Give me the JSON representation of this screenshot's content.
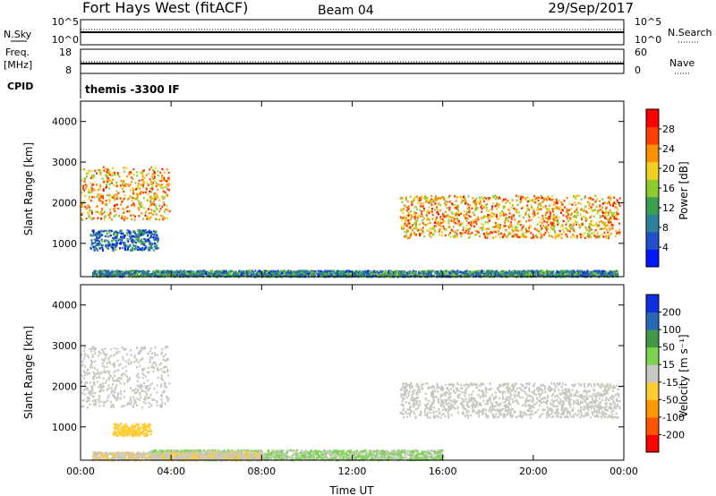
{
  "header": {
    "station": "Fort Hays West (fitACF)",
    "beam": "Beam 04",
    "date": "29/Sep/2017"
  },
  "aux_labels": {
    "nsky": "N.Sky",
    "nsearch": "N.Search",
    "freq_top": "Freq.",
    "freq_unit": "[MHz]",
    "nave": "Nave",
    "cpid": "CPID",
    "cpid_value": "themis -3300 IF",
    "noise_ticks_left": [
      "10^5",
      "10^0"
    ],
    "noise_ticks_right": [
      "10^5",
      "10^0"
    ],
    "freq_ticks": [
      "18",
      "8"
    ],
    "nave_ticks": [
      "60",
      "0"
    ]
  },
  "colors": {
    "power_scale": [
      "#0018ff",
      "#2050c8",
      "#2e7f99",
      "#3aa050",
      "#8ccc30",
      "#f0d020",
      "#ff9000",
      "#ff4000",
      "#ff0000"
    ],
    "velocity_scale": [
      "#ff0000",
      "#ff5500",
      "#ff9900",
      "#ffcc33",
      "#c8c8c0",
      "#7ad450",
      "#409848",
      "#2868b8",
      "#1030e0"
    ],
    "ground_scatter": "#c8c8c0"
  },
  "chart_data": [
    {
      "type": "heatmap",
      "panel": "power",
      "xlabel": "Time UT",
      "ylabel": "Slant Range [km]",
      "colorbar_label": "Power [dB]",
      "colorbar_ticks": [
        "28",
        "24",
        "20",
        "16",
        "12",
        "8",
        "4"
      ],
      "x_ticks": [
        "00:00",
        "04:00",
        "08:00",
        "12:00",
        "16:00",
        "20:00",
        "00:00"
      ],
      "y_ticks": [
        "4000",
        "3000",
        "2000",
        "1000"
      ],
      "xlim": [
        0,
        24
      ],
      "ylim": [
        180,
        4500
      ],
      "clim": [
        0,
        32
      ],
      "regions": [
        {
          "t0": 0.0,
          "t1": 3.9,
          "r0": 1600,
          "r1": 2900,
          "level": 22
        },
        {
          "t0": 0.4,
          "t1": 3.4,
          "r0": 850,
          "r1": 1350,
          "level": 8
        },
        {
          "t0": 14.1,
          "t1": 23.8,
          "r0": 1150,
          "r1": 2200,
          "level": 22
        },
        {
          "t0": 0.5,
          "t1": 23.7,
          "r0": 200,
          "r1": 350,
          "level": 10
        }
      ]
    },
    {
      "type": "heatmap",
      "panel": "velocity",
      "xlabel": "Time UT",
      "ylabel": "Slant Range [km]",
      "colorbar_label": "Velocity [m s⁻¹]",
      "colorbar_ticks": [
        "200",
        "100",
        "50",
        "15",
        "-15",
        "-50",
        "-100",
        "-200"
      ],
      "x_ticks": [
        "00:00",
        "04:00",
        "08:00",
        "12:00",
        "16:00",
        "20:00",
        "00:00"
      ],
      "y_ticks": [
        "4000",
        "3000",
        "2000",
        "1000"
      ],
      "xlim": [
        0,
        24
      ],
      "ylim": [
        180,
        4500
      ],
      "clim": [
        -250,
        250
      ],
      "regions": [
        {
          "t0": 0.0,
          "t1": 3.9,
          "r0": 1500,
          "r1": 3000,
          "level": 0,
          "ground_scatter": true
        },
        {
          "t0": 1.4,
          "t1": 3.1,
          "r0": 800,
          "r1": 1100,
          "level": -60
        },
        {
          "t0": 14.1,
          "t1": 23.8,
          "r0": 1250,
          "r1": 2100,
          "level": 0,
          "ground_scatter": true
        },
        {
          "t0": 3.0,
          "t1": 16.0,
          "r0": 200,
          "r1": 450,
          "level": 30
        },
        {
          "t0": 0.5,
          "t1": 8.0,
          "r0": 200,
          "r1": 400,
          "level": -20
        }
      ]
    }
  ]
}
